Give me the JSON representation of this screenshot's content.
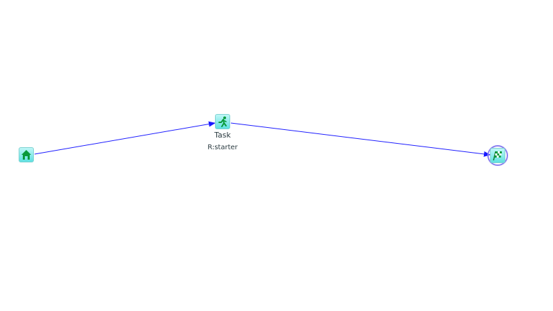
{
  "diagram": {
    "nodes": [
      {
        "id": "start",
        "type": "start",
        "icon": "home-icon",
        "label": "",
        "sublabel": ""
      },
      {
        "id": "task",
        "type": "task",
        "icon": "runner-icon",
        "label": "Task",
        "sublabel": "R:starter"
      },
      {
        "id": "end",
        "type": "end",
        "icon": "checkered-flag-icon",
        "label": "",
        "sublabel": ""
      }
    ],
    "edges": [
      {
        "from": "start",
        "to": "task"
      },
      {
        "from": "task",
        "to": "end"
      }
    ],
    "colors": {
      "edge": "#1a1aff",
      "node_fill": "#5fe0e0",
      "icon": "#0a9a3a",
      "end_ring": "#8a7ff0"
    }
  }
}
